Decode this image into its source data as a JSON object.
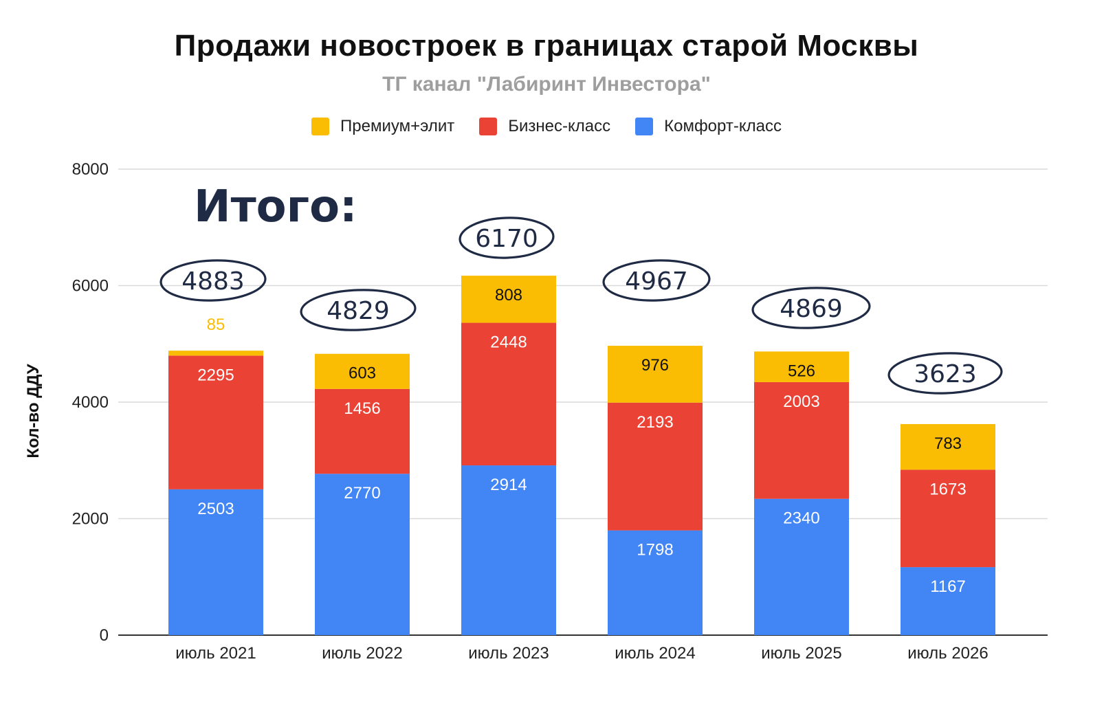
{
  "header": {
    "title": "Продажи новостроек в границах старой Москвы",
    "subtitle": "ТГ канал \"Лабиринт Инвестора\""
  },
  "annotation": {
    "total_label": "Итого:"
  },
  "colors": {
    "premium": "#FBBC04",
    "business": "#EA4335",
    "comfort": "#4285F4",
    "gridline": "#d9d9d9",
    "axis": "#333333",
    "annotation_ink": "#1f2a44"
  },
  "chart_data": {
    "type": "bar",
    "stacked": true,
    "title": "Продажи новостроек в границах старой Москвы",
    "subtitle": "ТГ канал \"Лабиринт Инвестора\"",
    "xlabel": "",
    "ylabel": "Кол-во ДДУ",
    "ylim": [
      0,
      8000
    ],
    "yticks": [
      "0",
      "2000",
      "4000",
      "6000",
      "8000"
    ],
    "grid": true,
    "legend_position": "top-center",
    "categories": [
      "июль 2021",
      "июль 2022",
      "июль 2023",
      "июль 2024",
      "июль 2025",
      "июль 2026"
    ],
    "series": [
      {
        "name": "Премиум+элит",
        "color": "#FBBC04",
        "values": [
          85,
          603,
          808,
          976,
          526,
          783
        ]
      },
      {
        "name": "Бизнес-класс",
        "color": "#EA4335",
        "values": [
          2295,
          1456,
          2448,
          2193,
          2003,
          1673
        ]
      },
      {
        "name": "Комфорт-класс",
        "color": "#4285F4",
        "values": [
          2503,
          2770,
          2914,
          1798,
          2340,
          1167
        ]
      }
    ],
    "totals": [
      "4883",
      "4829",
      "6170",
      "4967",
      "4869",
      "3623"
    ]
  }
}
